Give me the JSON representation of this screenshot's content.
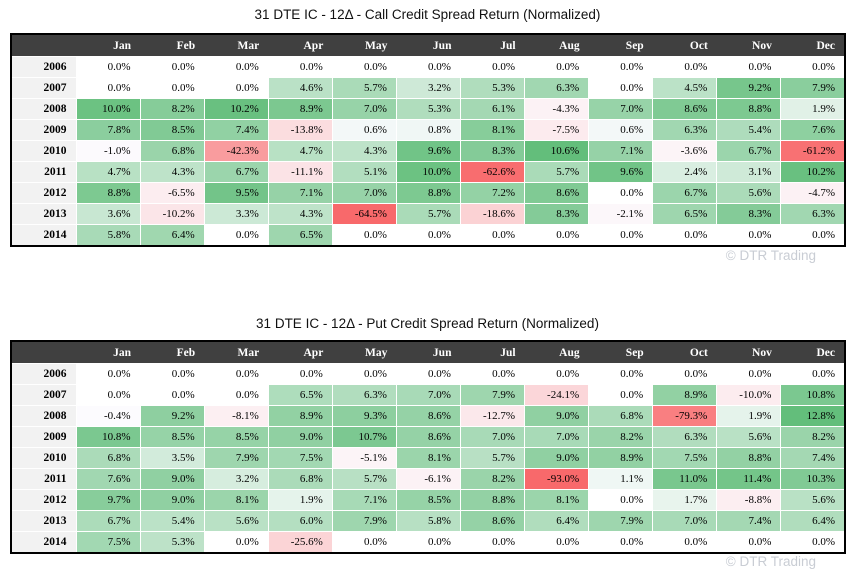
{
  "watermark_label": "© DTR Trading",
  "style": {
    "header_bg": "#404040",
    "header_text": "#FFFFFF",
    "year_col_bg": "#F2F2F2",
    "table_border": "#000000",
    "cell_divider": "#FFFFFF",
    "watermark_color": "#C9CDD4",
    "positive_color": "#63BE7B",
    "negative_color": "#F8696B",
    "neutral_base": "#FCFCFF",
    "zero_cell": "#FFFFFF"
  },
  "chart_data": [
    {
      "type": "heatmap",
      "title": "31 DTE IC - 12Δ - Call Credit Spread Return (Normalized)",
      "value_suffix": "%",
      "colorscale": {
        "min_color": "#F8696B",
        "mid_color": "#FCFCFF",
        "max_color": "#63BE7B",
        "midpoint": 0
      },
      "x_labels": [
        "Jan",
        "Feb",
        "Mar",
        "Apr",
        "May",
        "Jun",
        "Jul",
        "Aug",
        "Sep",
        "Oct",
        "Nov",
        "Dec"
      ],
      "y_labels": [
        "2006",
        "2007",
        "2008",
        "2009",
        "2010",
        "2011",
        "2012",
        "2013",
        "2014"
      ],
      "values": [
        [
          0.0,
          0.0,
          0.0,
          0.0,
          0.0,
          0.0,
          0.0,
          0.0,
          0.0,
          0.0,
          0.0,
          0.0
        ],
        [
          0.0,
          0.0,
          0.0,
          4.6,
          5.7,
          3.2,
          5.3,
          6.3,
          0.0,
          4.5,
          9.2,
          7.9
        ],
        [
          10.0,
          8.2,
          10.2,
          8.9,
          7.0,
          5.3,
          6.1,
          -4.3,
          7.0,
          8.6,
          8.8,
          1.9
        ],
        [
          7.8,
          8.5,
          7.4,
          -13.8,
          0.6,
          0.8,
          8.1,
          -7.5,
          0.6,
          6.3,
          5.4,
          7.6
        ],
        [
          -1.0,
          6.8,
          -42.3,
          4.7,
          4.3,
          9.6,
          8.3,
          10.6,
          7.1,
          -3.6,
          6.7,
          -61.2
        ],
        [
          4.7,
          4.3,
          6.7,
          -11.1,
          5.1,
          10.0,
          -62.6,
          5.7,
          9.6,
          2.4,
          3.1,
          10.2
        ],
        [
          8.8,
          -6.5,
          9.5,
          7.1,
          7.0,
          8.8,
          7.2,
          8.6,
          0.0,
          6.7,
          5.6,
          -4.7
        ],
        [
          3.6,
          -10.2,
          3.3,
          4.3,
          -64.5,
          5.7,
          -18.6,
          8.3,
          -2.1,
          6.5,
          8.3,
          6.3
        ],
        [
          5.8,
          6.4,
          0.0,
          6.5,
          0.0,
          0.0,
          0.0,
          0.0,
          0.0,
          0.0,
          0.0,
          0.0
        ]
      ]
    },
    {
      "type": "heatmap",
      "title": "31 DTE IC - 12Δ - Put Credit Spread Return (Normalized)",
      "value_suffix": "%",
      "colorscale": {
        "min_color": "#F8696B",
        "mid_color": "#FCFCFF",
        "max_color": "#63BE7B",
        "midpoint": 0
      },
      "x_labels": [
        "Jan",
        "Feb",
        "Mar",
        "Apr",
        "May",
        "Jun",
        "Jul",
        "Aug",
        "Sep",
        "Oct",
        "Nov",
        "Dec"
      ],
      "y_labels": [
        "2006",
        "2007",
        "2008",
        "2009",
        "2010",
        "2011",
        "2012",
        "2013",
        "2014"
      ],
      "values": [
        [
          0.0,
          0.0,
          0.0,
          0.0,
          0.0,
          0.0,
          0.0,
          0.0,
          0.0,
          0.0,
          0.0,
          0.0
        ],
        [
          0.0,
          0.0,
          0.0,
          6.5,
          6.3,
          7.0,
          7.9,
          -24.1,
          0.0,
          8.9,
          -10.0,
          10.8
        ],
        [
          -0.4,
          9.2,
          -8.1,
          8.9,
          9.3,
          8.6,
          -12.7,
          9.0,
          6.8,
          -79.3,
          1.9,
          12.8
        ],
        [
          10.8,
          8.5,
          8.5,
          9.0,
          10.7,
          8.6,
          7.0,
          7.0,
          8.2,
          6.3,
          5.6,
          8.2
        ],
        [
          6.8,
          3.5,
          7.9,
          7.5,
          -5.1,
          8.1,
          5.7,
          9.0,
          8.9,
          7.5,
          8.8,
          7.4
        ],
        [
          7.6,
          9.0,
          3.2,
          6.8,
          5.7,
          -6.1,
          8.2,
          -93.0,
          1.1,
          11.0,
          11.4,
          10.3
        ],
        [
          9.7,
          9.0,
          8.1,
          1.9,
          7.1,
          8.5,
          8.8,
          8.1,
          0.0,
          1.7,
          -8.8,
          5.6
        ],
        [
          6.7,
          5.4,
          5.6,
          6.0,
          7.9,
          5.8,
          8.6,
          6.4,
          7.9,
          7.0,
          7.4,
          6.4
        ],
        [
          7.5,
          5.3,
          0.0,
          -25.6,
          0.0,
          0.0,
          0.0,
          0.0,
          0.0,
          0.0,
          0.0,
          0.0
        ]
      ]
    }
  ]
}
